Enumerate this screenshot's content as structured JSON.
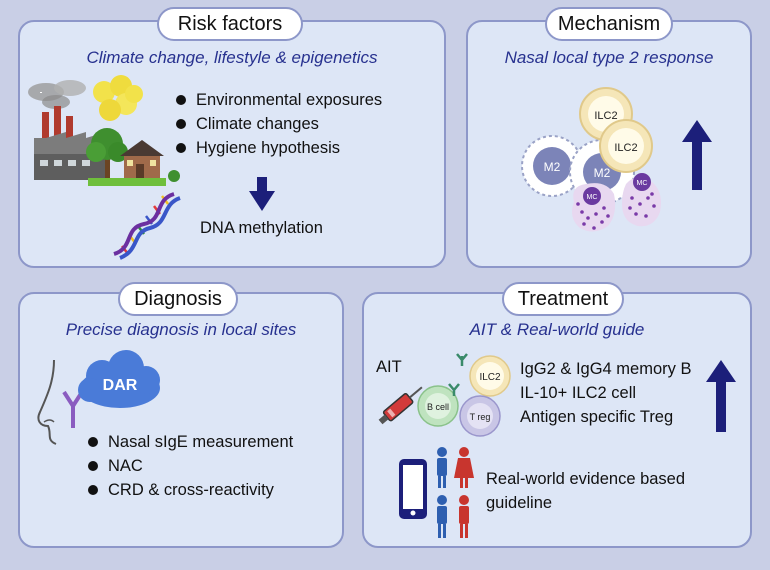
{
  "risk_factors": {
    "title": "Risk factors",
    "subtitle": "Climate change, lifestyle & epigenetics",
    "bullets": [
      "Environmental exposures",
      "Climate changes",
      "Hygiene hypothesis"
    ],
    "result": "DNA methylation"
  },
  "mechanism": {
    "title": "Mechanism",
    "subtitle": "Nasal local type 2 response",
    "cells": {
      "ilc2": "ILC2",
      "m2": "M2",
      "mc": "MC"
    }
  },
  "diagnosis": {
    "title": "Diagnosis",
    "subtitle": "Precise diagnosis in local sites",
    "cloud_label": "DAR",
    "bullets": [
      "Nasal sIgE measurement",
      "NAC",
      "CRD & cross-reactivity"
    ]
  },
  "treatment": {
    "title": "Treatment",
    "subtitle": "AIT & Real-world guide",
    "ait_label": "AIT",
    "cells": {
      "ilc2": "ILC2",
      "bcell": "B cell",
      "treg": "T reg"
    },
    "lines": [
      "IgG2 & IgG4 memory B",
      "IL-10+ ILC2 cell",
      "Antigen specific Treg"
    ],
    "guideline": [
      "Real-world evidence based",
      "guideline"
    ]
  },
  "colors": {
    "panel_bg": "#dde6f6",
    "panel_border": "#8d97c9",
    "accent_navy": "#1c1f7a",
    "subtitle": "#27318f"
  }
}
